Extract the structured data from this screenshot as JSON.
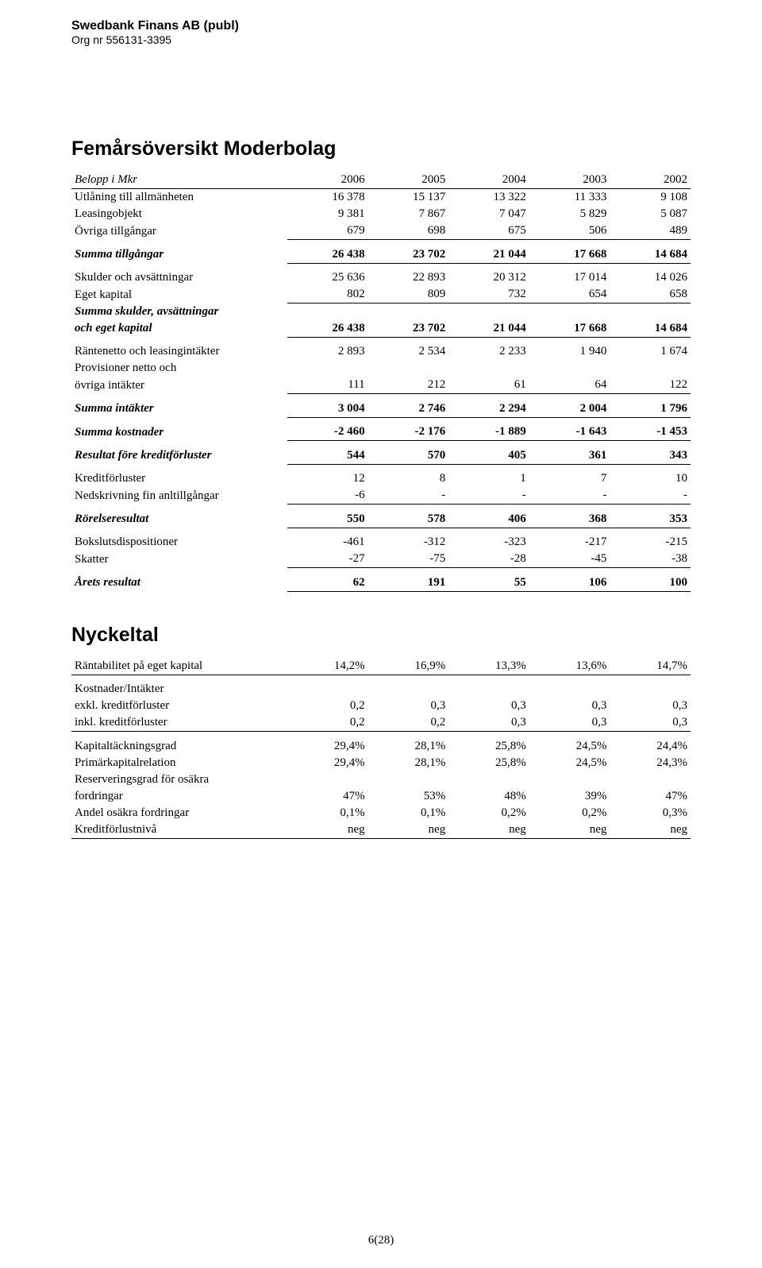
{
  "header": {
    "company": "Swedbank Finans AB (publ)",
    "orgnr": "Org nr 556131-3395"
  },
  "title1": "Femårsöversikt Moderbolag",
  "colhead": {
    "label": "Belopp i Mkr",
    "y2006": "2006",
    "y2005": "2005",
    "y2004": "2004",
    "y2003": "2003",
    "y2002": "2002"
  },
  "rows": {
    "utlaning": {
      "label": "Utlåning till allmänheten",
      "v": [
        "16 378",
        "15 137",
        "13 322",
        "11 333",
        "9 108"
      ]
    },
    "leasing": {
      "label": "Leasingobjekt",
      "v": [
        "9 381",
        "7 867",
        "7 047",
        "5 829",
        "5 087"
      ]
    },
    "ovriga_till": {
      "label": "Övriga tillgångar",
      "v": [
        "679",
        "698",
        "675",
        "506",
        "489"
      ]
    },
    "summa_till": {
      "label": "Summa tillgångar",
      "v": [
        "26 438",
        "23 702",
        "21 044",
        "17 668",
        "14 684"
      ]
    },
    "skulder": {
      "label": "Skulder och avsättningar",
      "v": [
        "25 636",
        "22 893",
        "20 312",
        "17 014",
        "14 026"
      ]
    },
    "eget_kap": {
      "label": "Eget kapital",
      "v": [
        "802",
        "809",
        "732",
        "654",
        "658"
      ]
    },
    "summa_sk1": {
      "label": "Summa skulder, avsättningar"
    },
    "summa_sk2": {
      "label": "och eget kapital",
      "v": [
        "26 438",
        "23 702",
        "21 044",
        "17 668",
        "14 684"
      ]
    },
    "rantenetto": {
      "label": "Räntenetto och leasingintäkter",
      "v": [
        "2 893",
        "2 534",
        "2 233",
        "1 940",
        "1 674"
      ]
    },
    "prov1": {
      "label": "Provisioner netto och"
    },
    "prov2": {
      "label": "övriga intäkter",
      "v": [
        "111",
        "212",
        "61",
        "64",
        "122"
      ]
    },
    "summa_int": {
      "label": "Summa intäkter",
      "v": [
        "3 004",
        "2 746",
        "2 294",
        "2 004",
        "1 796"
      ]
    },
    "summa_kost": {
      "label": "Summa kostnader",
      "v": [
        "-2 460",
        "-2 176",
        "-1 889",
        "-1 643",
        "-1 453"
      ]
    },
    "resultat_fk": {
      "label": "Resultat före kreditförluster",
      "v": [
        "544",
        "570",
        "405",
        "361",
        "343"
      ]
    },
    "kreditforl": {
      "label": "Kreditförluster",
      "v": [
        "12",
        "8",
        "1",
        "7",
        "10"
      ]
    },
    "nedskriv": {
      "label": "Nedskrivning fin anltillgångar",
      "v": [
        "-6",
        "-",
        "-",
        "-",
        "-"
      ]
    },
    "rorelse": {
      "label": "Rörelseresultat",
      "v": [
        "550",
        "578",
        "406",
        "368",
        "353"
      ]
    },
    "boksluts": {
      "label": "Bokslutsdispositioner",
      "v": [
        "-461",
        "-312",
        "-323",
        "-217",
        "-215"
      ]
    },
    "skatter": {
      "label": "Skatter",
      "v": [
        "-27",
        "-75",
        "-28",
        "-45",
        "-38"
      ]
    },
    "arets": {
      "label": "Årets resultat",
      "v": [
        "62",
        "191",
        "55",
        "106",
        "100"
      ]
    }
  },
  "title2": "Nyckeltal",
  "krows": {
    "rantab": {
      "label": "Räntabilitet på eget kapital",
      "v": [
        "14,2%",
        "16,9%",
        "13,3%",
        "13,6%",
        "14,7%"
      ]
    },
    "kost_int": {
      "label": "Kostnader/Intäkter"
    },
    "exkl": {
      "label": "  exkl. kreditförluster",
      "v": [
        "0,2",
        "0,3",
        "0,3",
        "0,3",
        "0,3"
      ]
    },
    "inkl": {
      "label": "  inkl. kreditförluster",
      "v": [
        "0,2",
        "0,2",
        "0,3",
        "0,3",
        "0,3"
      ]
    },
    "kaptack": {
      "label": "Kapitaltäckningsgrad",
      "v": [
        "29,4%",
        "28,1%",
        "25,8%",
        "24,5%",
        "24,4%"
      ]
    },
    "primkap": {
      "label": "Primärkapitalrelation",
      "v": [
        "29,4%",
        "28,1%",
        "25,8%",
        "24,5%",
        "24,3%"
      ]
    },
    "reserv1": {
      "label": "Reserveringsgrad för osäkra"
    },
    "reserv2": {
      "label": "fordringar",
      "v": [
        "47%",
        "53%",
        "48%",
        "39%",
        "47%"
      ]
    },
    "andel": {
      "label": "Andel osäkra fordringar",
      "v": [
        "0,1%",
        "0,1%",
        "0,2%",
        "0,2%",
        "0,3%"
      ]
    },
    "kreditniva": {
      "label": "Kreditförlustnivå",
      "v": [
        "neg",
        "neg",
        "neg",
        "neg",
        "neg"
      ]
    }
  },
  "footer": "6(28)"
}
